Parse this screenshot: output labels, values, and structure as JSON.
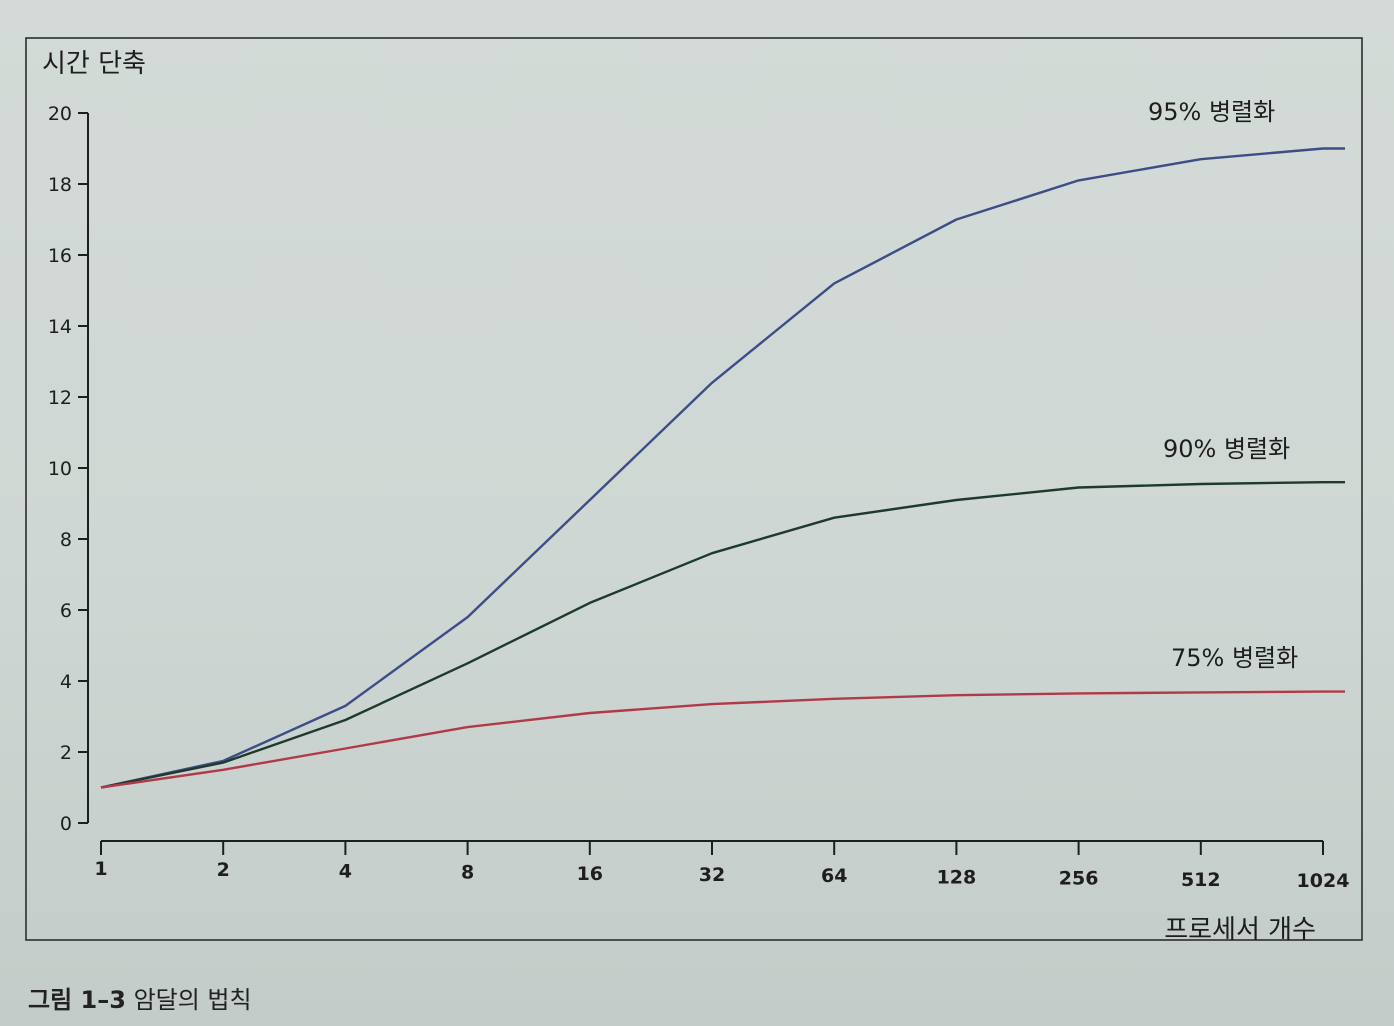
{
  "chart_data": {
    "type": "line",
    "title": "",
    "xlabel": "프로세서 개수",
    "ylabel": "시간 단축",
    "x_scale": "log2",
    "x": [
      1,
      2,
      4,
      8,
      16,
      32,
      64,
      128,
      256,
      512,
      1024
    ],
    "x_tick_labels": [
      "1",
      "2",
      "4",
      "8",
      "16",
      "32",
      "64",
      "128",
      "256",
      "512",
      "1024"
    ],
    "ylim": [
      0,
      20
    ],
    "y_ticks": [
      0,
      2,
      4,
      6,
      8,
      10,
      12,
      14,
      16,
      18,
      20
    ],
    "y_tick_labels": [
      "0",
      "2",
      "4",
      "6",
      "8",
      "10",
      "12",
      "14",
      "16",
      "18",
      "20"
    ],
    "grid": false,
    "series": [
      {
        "name": "95% 병렬화",
        "color": "#3d4d86",
        "values": [
          1.0,
          1.75,
          3.3,
          5.8,
          9.1,
          12.4,
          15.2,
          17.0,
          18.1,
          18.7,
          19.0
        ]
      },
      {
        "name": "90% 병렬화",
        "color": "#1d3b2c",
        "values": [
          1.0,
          1.7,
          2.9,
          4.5,
          6.2,
          7.6,
          8.6,
          9.1,
          9.45,
          9.55,
          9.6
        ]
      },
      {
        "name": "75% 병렬화",
        "color": "#b23a48",
        "values": [
          1.0,
          1.5,
          2.1,
          2.7,
          3.1,
          3.35,
          3.5,
          3.6,
          3.65,
          3.68,
          3.7
        ]
      }
    ]
  },
  "caption": {
    "label": "그림 1–3",
    "text": "암달의 법칙"
  }
}
